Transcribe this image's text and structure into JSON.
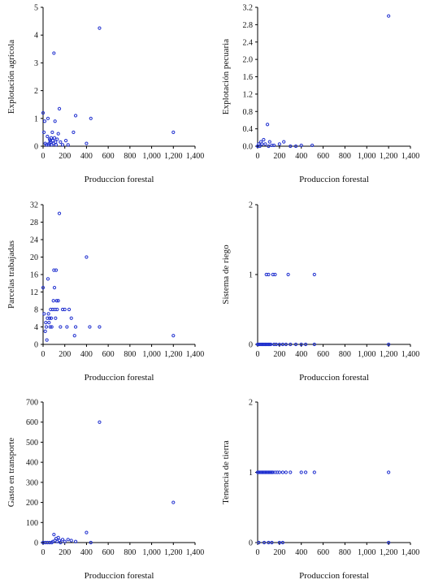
{
  "marker_color": "#1f2fcf",
  "chart_data": [
    {
      "type": "scatter",
      "xlabel": "Produccion forestal",
      "ylabel": "Explotación agrícola",
      "xlim": [
        0,
        1400
      ],
      "ylim": [
        0,
        5
      ],
      "xticks": [
        "0",
        "200",
        "400",
        "600",
        "800",
        "1,000",
        "1,200",
        "1,400"
      ],
      "yticks": [
        "0",
        "1",
        "2",
        "3",
        "4",
        "5"
      ],
      "points": [
        [
          0,
          1.2
        ],
        [
          8,
          0.5
        ],
        [
          15,
          0.9
        ],
        [
          20,
          0.1
        ],
        [
          30,
          0.05
        ],
        [
          40,
          0.35
        ],
        [
          45,
          1.0
        ],
        [
          50,
          0.05
        ],
        [
          55,
          0.1
        ],
        [
          60,
          0.25
        ],
        [
          65,
          0.2
        ],
        [
          70,
          0.15
        ],
        [
          75,
          0.3
        ],
        [
          80,
          0.05
        ],
        [
          85,
          0.5
        ],
        [
          90,
          0.2
        ],
        [
          95,
          0.1
        ],
        [
          100,
          3.35
        ],
        [
          105,
          0.3
        ],
        [
          110,
          0.9
        ],
        [
          115,
          0.15
        ],
        [
          120,
          0.05
        ],
        [
          130,
          0.25
        ],
        [
          140,
          0.45
        ],
        [
          150,
          1.35
        ],
        [
          160,
          0.15
        ],
        [
          180,
          0.05
        ],
        [
          210,
          0.2
        ],
        [
          230,
          0.05
        ],
        [
          280,
          0.5
        ],
        [
          300,
          1.1
        ],
        [
          400,
          0.1
        ],
        [
          440,
          1.0
        ],
        [
          520,
          4.25
        ],
        [
          1200,
          0.5
        ]
      ]
    },
    {
      "type": "scatter",
      "xlabel": "Produccion forestal",
      "ylabel": "Explotación pecuaria",
      "xlim": [
        0,
        1400
      ],
      "ylim": [
        0,
        3.2
      ],
      "xticks": [
        "0",
        "200",
        "400",
        "600",
        "800",
        "1,000",
        "1,200",
        "1,400"
      ],
      "yticks": [
        "0.0",
        "0.4",
        "0.8",
        "1.2",
        "1.6",
        "2.0",
        "2.4",
        "2.8",
        "3.2"
      ],
      "points": [
        [
          0,
          0.0
        ],
        [
          10,
          0.05
        ],
        [
          20,
          0.0
        ],
        [
          30,
          0.1
        ],
        [
          40,
          0.05
        ],
        [
          55,
          0.15
        ],
        [
          70,
          0.05
        ],
        [
          90,
          0.5
        ],
        [
          100,
          0.0
        ],
        [
          110,
          0.1
        ],
        [
          130,
          0.02
        ],
        [
          150,
          0.02
        ],
        [
          200,
          0.05
        ],
        [
          240,
          0.1
        ],
        [
          300,
          0.0
        ],
        [
          350,
          0.0
        ],
        [
          400,
          0.02
        ],
        [
          500,
          0.02
        ],
        [
          1200,
          3.0
        ]
      ]
    },
    {
      "type": "scatter",
      "xlabel": "Produccion forestal",
      "ylabel": "Parcelas trabajadas",
      "xlim": [
        0,
        1400
      ],
      "ylim": [
        0,
        32
      ],
      "xticks": [
        "0",
        "200",
        "400",
        "600",
        "800",
        "1,000",
        "1,200",
        "1,400"
      ],
      "yticks": [
        "0",
        "4",
        "8",
        "12",
        "16",
        "20",
        "24",
        "28",
        "32"
      ],
      "points": [
        [
          0,
          13
        ],
        [
          10,
          7
        ],
        [
          20,
          3
        ],
        [
          25,
          5
        ],
        [
          30,
          4
        ],
        [
          35,
          1
        ],
        [
          40,
          6
        ],
        [
          45,
          15
        ],
        [
          50,
          7
        ],
        [
          55,
          5
        ],
        [
          60,
          6
        ],
        [
          65,
          4
        ],
        [
          70,
          8
        ],
        [
          75,
          6
        ],
        [
          80,
          4
        ],
        [
          90,
          8
        ],
        [
          95,
          10
        ],
        [
          100,
          17
        ],
        [
          105,
          13
        ],
        [
          110,
          8
        ],
        [
          115,
          6
        ],
        [
          120,
          17
        ],
        [
          125,
          10
        ],
        [
          130,
          8
        ],
        [
          140,
          10
        ],
        [
          150,
          30
        ],
        [
          160,
          4
        ],
        [
          180,
          8
        ],
        [
          200,
          8
        ],
        [
          220,
          4
        ],
        [
          240,
          8
        ],
        [
          260,
          6
        ],
        [
          290,
          2
        ],
        [
          300,
          4
        ],
        [
          400,
          20
        ],
        [
          430,
          4
        ],
        [
          520,
          4
        ],
        [
          1200,
          2
        ]
      ]
    },
    {
      "type": "scatter",
      "xlabel": "Produccion forestal",
      "ylabel": "Sistema de riego",
      "xlim": [
        0,
        1400
      ],
      "ylim": [
        0,
        2
      ],
      "xticks": [
        "0",
        "200",
        "400",
        "600",
        "800",
        "1,000",
        "1,200",
        "1,400"
      ],
      "yticks": [
        "0",
        "1",
        "2"
      ],
      "points": [
        [
          0,
          0
        ],
        [
          10,
          0
        ],
        [
          20,
          0
        ],
        [
          30,
          0
        ],
        [
          40,
          0
        ],
        [
          50,
          0
        ],
        [
          60,
          0
        ],
        [
          70,
          0
        ],
        [
          80,
          0
        ],
        [
          90,
          0
        ],
        [
          100,
          0
        ],
        [
          110,
          0
        ],
        [
          120,
          0
        ],
        [
          150,
          0
        ],
        [
          170,
          0
        ],
        [
          200,
          0
        ],
        [
          230,
          0
        ],
        [
          260,
          0
        ],
        [
          300,
          0
        ],
        [
          350,
          0
        ],
        [
          400,
          0
        ],
        [
          440,
          0
        ],
        [
          520,
          0
        ],
        [
          1200,
          0
        ],
        [
          80,
          1
        ],
        [
          100,
          1
        ],
        [
          140,
          1
        ],
        [
          160,
          1
        ],
        [
          280,
          1
        ],
        [
          520,
          1
        ]
      ]
    },
    {
      "type": "scatter",
      "xlabel": "Produccion forestal",
      "ylabel": "Gasto en transporte",
      "xlim": [
        0,
        1400
      ],
      "ylim": [
        0,
        700
      ],
      "xticks": [
        "0",
        "200",
        "400",
        "600",
        "800",
        "1,000",
        "1,200",
        "1,400"
      ],
      "yticks": [
        "0",
        "100",
        "200",
        "300",
        "400",
        "500",
        "600",
        "700"
      ],
      "points": [
        [
          0,
          0
        ],
        [
          20,
          0
        ],
        [
          40,
          0
        ],
        [
          60,
          0
        ],
        [
          80,
          0
        ],
        [
          90,
          5
        ],
        [
          100,
          40
        ],
        [
          110,
          10
        ],
        [
          120,
          20
        ],
        [
          130,
          5
        ],
        [
          140,
          25
        ],
        [
          150,
          10
        ],
        [
          160,
          0
        ],
        [
          180,
          15
        ],
        [
          200,
          5
        ],
        [
          230,
          15
        ],
        [
          260,
          10
        ],
        [
          300,
          5
        ],
        [
          400,
          50
        ],
        [
          440,
          0
        ],
        [
          520,
          600
        ],
        [
          1200,
          200
        ]
      ]
    },
    {
      "type": "scatter",
      "xlabel": "Produccion forestal",
      "ylabel": "Tenencia de tierra",
      "xlim": [
        0,
        1400
      ],
      "ylim": [
        0,
        2
      ],
      "xticks": [
        "0",
        "200",
        "400",
        "600",
        "800",
        "1,000",
        "1,200",
        "1,400"
      ],
      "yticks": [
        "0",
        "1",
        "2"
      ],
      "points": [
        [
          0,
          1
        ],
        [
          10,
          1
        ],
        [
          20,
          1
        ],
        [
          30,
          1
        ],
        [
          40,
          1
        ],
        [
          50,
          1
        ],
        [
          60,
          1
        ],
        [
          70,
          1
        ],
        [
          80,
          1
        ],
        [
          90,
          1
        ],
        [
          100,
          1
        ],
        [
          110,
          1
        ],
        [
          120,
          1
        ],
        [
          130,
          1
        ],
        [
          140,
          1
        ],
        [
          160,
          1
        ],
        [
          180,
          1
        ],
        [
          200,
          1
        ],
        [
          230,
          1
        ],
        [
          260,
          1
        ],
        [
          300,
          1
        ],
        [
          400,
          1
        ],
        [
          440,
          1
        ],
        [
          520,
          1
        ],
        [
          1200,
          1
        ],
        [
          10,
          0
        ],
        [
          60,
          0
        ],
        [
          100,
          0
        ],
        [
          130,
          0
        ],
        [
          200,
          0
        ],
        [
          230,
          0
        ],
        [
          1200,
          0
        ]
      ]
    }
  ]
}
